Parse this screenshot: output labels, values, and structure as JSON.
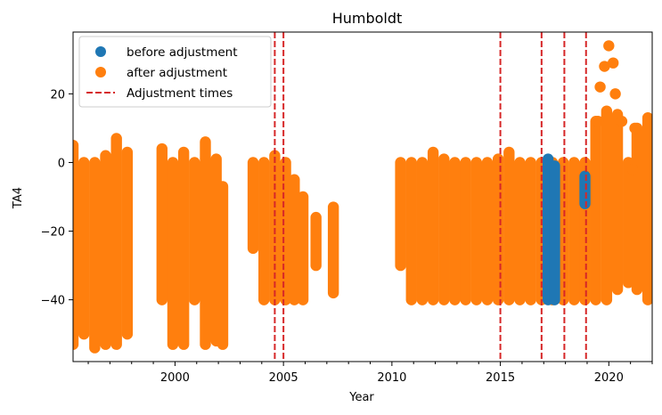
{
  "chart_data": {
    "type": "scatter",
    "title": "Humboldt",
    "xlabel": "Year",
    "ylabel": "TA4",
    "xlim": [
      1995.3,
      2022.0
    ],
    "ylim": [
      -58,
      38
    ],
    "x_ticks": [
      2000,
      2005,
      2010,
      2015,
      2020
    ],
    "y_ticks": [
      -40,
      -20,
      0,
      20
    ],
    "grid": false,
    "legend_position": "top-left",
    "colors": {
      "before": "#1f77b4",
      "after": "#ff7f0e",
      "adjustment": "#d62728"
    },
    "legend": [
      {
        "label": "before adjustment",
        "marker": "circle",
        "color": "#1f77b4"
      },
      {
        "label": "after adjustment",
        "marker": "circle",
        "color": "#ff7f0e"
      },
      {
        "label": "Adjustment times",
        "marker": "dashed-line",
        "color": "#d62728"
      }
    ],
    "adjustment_times": [
      2004.6,
      2005.0,
      2015.0,
      2016.9,
      2017.95,
      2018.95
    ],
    "series": [
      {
        "name": "after adjustment",
        "segments": [
          {
            "x": 1995.3,
            "ymin": -53,
            "ymax": 5
          },
          {
            "x": 1995.8,
            "ymin": -50,
            "ymax": 0
          },
          {
            "x": 1996.3,
            "ymin": -54,
            "ymax": 0
          },
          {
            "x": 1996.8,
            "ymin": -53,
            "ymax": 2
          },
          {
            "x": 1997.3,
            "ymin": -53,
            "ymax": 7
          },
          {
            "x": 1997.8,
            "ymin": -50,
            "ymax": 3
          },
          {
            "x": 1999.4,
            "ymin": -40,
            "ymax": 4
          },
          {
            "x": 1999.9,
            "ymin": -53,
            "ymax": 0
          },
          {
            "x": 2000.4,
            "ymin": -53,
            "ymax": 3
          },
          {
            "x": 2000.9,
            "ymin": -40,
            "ymax": 0
          },
          {
            "x": 2001.4,
            "ymin": -53,
            "ymax": 6
          },
          {
            "x": 2001.9,
            "ymin": -52,
            "ymax": 1
          },
          {
            "x": 2002.2,
            "ymin": -53,
            "ymax": -7
          },
          {
            "x": 2003.6,
            "ymin": -25,
            "ymax": 0
          },
          {
            "x": 2004.1,
            "ymin": -40,
            "ymax": 0
          },
          {
            "x": 2004.6,
            "ymin": -40,
            "ymax": 2
          },
          {
            "x": 2005.1,
            "ymin": -40,
            "ymax": 0
          },
          {
            "x": 2005.5,
            "ymin": -40,
            "ymax": -5
          },
          {
            "x": 2005.9,
            "ymin": -40,
            "ymax": -10
          },
          {
            "x": 2006.5,
            "ymin": -30,
            "ymax": -16
          },
          {
            "x": 2007.3,
            "ymin": -38,
            "ymax": -13
          },
          {
            "x": 2010.4,
            "ymin": -30,
            "ymax": 0
          },
          {
            "x": 2010.9,
            "ymin": -40,
            "ymax": 0
          },
          {
            "x": 2011.4,
            "ymin": -40,
            "ymax": 0
          },
          {
            "x": 2011.9,
            "ymin": -40,
            "ymax": 3
          },
          {
            "x": 2012.4,
            "ymin": -40,
            "ymax": 1
          },
          {
            "x": 2012.9,
            "ymin": -40,
            "ymax": 0
          },
          {
            "x": 2013.4,
            "ymin": -40,
            "ymax": 0
          },
          {
            "x": 2013.9,
            "ymin": -40,
            "ymax": 0
          },
          {
            "x": 2014.4,
            "ymin": -40,
            "ymax": 0
          },
          {
            "x": 2014.9,
            "ymin": -40,
            "ymax": 1
          },
          {
            "x": 2015.4,
            "ymin": -40,
            "ymax": 3
          },
          {
            "x": 2015.9,
            "ymin": -40,
            "ymax": 0
          },
          {
            "x": 2016.4,
            "ymin": -40,
            "ymax": 0
          },
          {
            "x": 2016.9,
            "ymin": -40,
            "ymax": 0
          },
          {
            "x": 2017.4,
            "ymin": -40,
            "ymax": 0
          },
          {
            "x": 2017.9,
            "ymin": -40,
            "ymax": 0
          },
          {
            "x": 2018.4,
            "ymin": -40,
            "ymax": 0
          },
          {
            "x": 2018.9,
            "ymin": -40,
            "ymax": 0
          },
          {
            "x": 2019.4,
            "ymin": -40,
            "ymax": 12
          },
          {
            "x": 2019.9,
            "ymin": -40,
            "ymax": 15
          },
          {
            "x": 2020.4,
            "ymin": -37,
            "ymax": 14
          },
          {
            "x": 2020.9,
            "ymin": -35,
            "ymax": 0
          },
          {
            "x": 2021.3,
            "ymin": -37,
            "ymax": 10
          },
          {
            "x": 2021.8,
            "ymin": -40,
            "ymax": 13
          }
        ],
        "outliers": [
          {
            "x": 2019.6,
            "y": 22
          },
          {
            "x": 2019.8,
            "y": 28
          },
          {
            "x": 2020.0,
            "y": 34
          },
          {
            "x": 2020.2,
            "y": 29
          },
          {
            "x": 2020.3,
            "y": 20
          },
          {
            "x": 2019.5,
            "y": 12
          },
          {
            "x": 2020.6,
            "y": 12
          },
          {
            "x": 2021.1,
            "y": -2
          },
          {
            "x": 2021.8,
            "y": 13
          },
          {
            "x": 2021.2,
            "y": 10
          }
        ]
      },
      {
        "name": "before adjustment",
        "segments": [
          {
            "x": 2017.2,
            "ymin": -40,
            "ymax": 1
          },
          {
            "x": 2017.5,
            "ymin": -40,
            "ymax": -1
          },
          {
            "x": 2018.9,
            "ymin": -12,
            "ymax": -4
          }
        ]
      }
    ]
  }
}
